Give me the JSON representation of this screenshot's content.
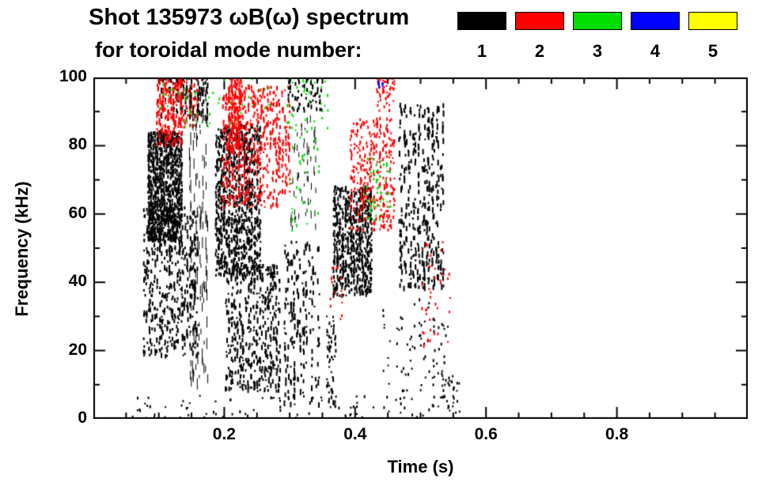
{
  "header": {
    "title_line1": "Shot 135973 ωB(ω) spectrum",
    "title_line2": "for toroidal mode number:"
  },
  "chart_data": {
    "type": "scatter",
    "title": "Shot 135973 ωB(ω) spectrum for toroidal mode number",
    "xlabel": "Time (s)",
    "ylabel": "Frequency (kHz)",
    "xlim": [
      0.0,
      1.0
    ],
    "ylim": [
      0,
      100
    ],
    "xticks": [
      {
        "v": 0.2,
        "label": "0.2"
      },
      {
        "v": 0.4,
        "label": "0.4"
      },
      {
        "v": 0.6,
        "label": "0.6"
      },
      {
        "v": 0.8,
        "label": "0.8"
      }
    ],
    "x_minor_step": 0.05,
    "yticks": [
      {
        "v": 0,
        "label": "0"
      },
      {
        "v": 20,
        "label": "20"
      },
      {
        "v": 40,
        "label": "40"
      },
      {
        "v": 60,
        "label": "60"
      },
      {
        "v": 80,
        "label": "80"
      },
      {
        "v": 100,
        "label": "100"
      }
    ],
    "y_minor_step": 10,
    "grid": false,
    "legend_position": "top-right",
    "legend": [
      {
        "mode": "1",
        "color": "#000000"
      },
      {
        "mode": "2",
        "color": "#ff0000"
      },
      {
        "mode": "3",
        "color": "#00dd00"
      },
      {
        "mode": "4",
        "color": "#0000ff"
      },
      {
        "mode": "5",
        "color": "#ffff00"
      }
    ],
    "seed": 1359731,
    "clusters": [
      {
        "mode": 1,
        "t": [
          0.05,
          0.56
        ],
        "f": [
          0,
          7
        ],
        "n": 90,
        "w": 2,
        "h": [
          2,
          4
        ],
        "cols": 40
      },
      {
        "mode": 1,
        "t": [
          0.075,
          0.16
        ],
        "f": [
          18,
          62
        ],
        "n": 500,
        "w": 2,
        "h": [
          2,
          7
        ],
        "cols": 22
      },
      {
        "mode": 1,
        "t": [
          0.082,
          0.135
        ],
        "f": [
          52,
          84
        ],
        "n": 900,
        "w": 2,
        "h": [
          2,
          6
        ],
        "cols": 16
      },
      {
        "mode": 1,
        "t": [
          0.1,
          0.175
        ],
        "f": [
          88,
          100
        ],
        "n": 120,
        "w": 2,
        "h": [
          2,
          8
        ],
        "cols": 12
      },
      {
        "mode": 2,
        "t": [
          0.095,
          0.135
        ],
        "f": [
          80,
          100
        ],
        "n": 220,
        "w": 2,
        "h": [
          2,
          6
        ],
        "cols": 10
      },
      {
        "mode": 2,
        "t": [
          0.13,
          0.16
        ],
        "f": [
          85,
          100
        ],
        "n": 60,
        "w": 2,
        "h": [
          2,
          5
        ],
        "cols": 6
      },
      {
        "mode": 3,
        "t": [
          0.1,
          0.36
        ],
        "f": [
          84,
          100
        ],
        "n": 90,
        "w": 2,
        "h": [
          2,
          4
        ],
        "cols": 30
      },
      {
        "mode": 1,
        "t": [
          0.145,
          0.175
        ],
        "f": [
          10,
          95
        ],
        "n": 120,
        "w": 1,
        "h": [
          4,
          18
        ],
        "cols": 6
      },
      {
        "mode": 1,
        "t": [
          0.185,
          0.255
        ],
        "f": [
          42,
          86
        ],
        "n": 900,
        "w": 2,
        "h": [
          2,
          6
        ],
        "cols": 18
      },
      {
        "mode": 1,
        "t": [
          0.2,
          0.285
        ],
        "f": [
          8,
          45
        ],
        "n": 450,
        "w": 2,
        "h": [
          2,
          7
        ],
        "cols": 20
      },
      {
        "mode": 2,
        "t": [
          0.195,
          0.3
        ],
        "f": [
          62,
          98
        ],
        "n": 550,
        "w": 2,
        "h": [
          2,
          6
        ],
        "cols": 22
      },
      {
        "mode": 2,
        "t": [
          0.205,
          0.225
        ],
        "f": [
          78,
          100
        ],
        "n": 150,
        "w": 2,
        "h": [
          2,
          6
        ],
        "cols": 5
      },
      {
        "mode": 1,
        "t": [
          0.29,
          0.345
        ],
        "f": [
          4,
          52
        ],
        "n": 200,
        "w": 2,
        "h": [
          2,
          8
        ],
        "cols": 12
      },
      {
        "mode": 1,
        "t": [
          0.295,
          0.35
        ],
        "f": [
          90,
          100
        ],
        "n": 60,
        "w": 2,
        "h": [
          2,
          6
        ],
        "cols": 8
      },
      {
        "mode": 1,
        "t": [
          0.3,
          0.34
        ],
        "f": [
          55,
          88
        ],
        "n": 60,
        "w": 1,
        "h": [
          3,
          10
        ],
        "cols": 8
      },
      {
        "mode": 3,
        "t": [
          0.3,
          0.345
        ],
        "f": [
          55,
          90
        ],
        "n": 40,
        "w": 2,
        "h": [
          2,
          4
        ],
        "cols": 8
      },
      {
        "mode": 1,
        "t": [
          0.355,
          0.37
        ],
        "f": [
          3,
          30
        ],
        "n": 60,
        "w": 2,
        "h": [
          2,
          5
        ],
        "cols": 5
      },
      {
        "mode": 1,
        "t": [
          0.365,
          0.425
        ],
        "f": [
          36,
          68
        ],
        "n": 650,
        "w": 2,
        "h": [
          2,
          6
        ],
        "cols": 14
      },
      {
        "mode": 2,
        "t": [
          0.36,
          0.38
        ],
        "f": [
          28,
          45
        ],
        "n": 15,
        "w": 2,
        "h": [
          2,
          4
        ],
        "cols": 4
      },
      {
        "mode": 2,
        "t": [
          0.39,
          0.46
        ],
        "f": [
          55,
          88
        ],
        "n": 320,
        "w": 2,
        "h": [
          2,
          5
        ],
        "cols": 14
      },
      {
        "mode": 3,
        "t": [
          0.415,
          0.455
        ],
        "f": [
          58,
          78
        ],
        "n": 50,
        "w": 2,
        "h": [
          2,
          4
        ],
        "cols": 8
      },
      {
        "mode": 2,
        "t": [
          0.43,
          0.46
        ],
        "f": [
          90,
          100
        ],
        "n": 50,
        "w": 2,
        "h": [
          2,
          4
        ],
        "cols": 6
      },
      {
        "mode": 4,
        "t": [
          0.432,
          0.442
        ],
        "f": [
          96,
          100
        ],
        "n": 10,
        "w": 2,
        "h": [
          2,
          4
        ],
        "cols": 2
      },
      {
        "mode": 1,
        "t": [
          0.44,
          0.55
        ],
        "f": [
          8,
          35
        ],
        "n": 80,
        "w": 2,
        "h": [
          2,
          4
        ],
        "cols": 16
      },
      {
        "mode": 1,
        "t": [
          0.465,
          0.535
        ],
        "f": [
          38,
          92
        ],
        "n": 380,
        "w": 2,
        "h": [
          2,
          8
        ],
        "cols": 10
      },
      {
        "mode": 2,
        "t": [
          0.5,
          0.545
        ],
        "f": [
          20,
          55
        ],
        "n": 40,
        "w": 2,
        "h": [
          2,
          4
        ],
        "cols": 8
      },
      {
        "mode": 1,
        "t": [
          0.53,
          0.56
        ],
        "f": [
          2,
          12
        ],
        "n": 30,
        "w": 2,
        "h": [
          2,
          4
        ],
        "cols": 4
      }
    ]
  }
}
